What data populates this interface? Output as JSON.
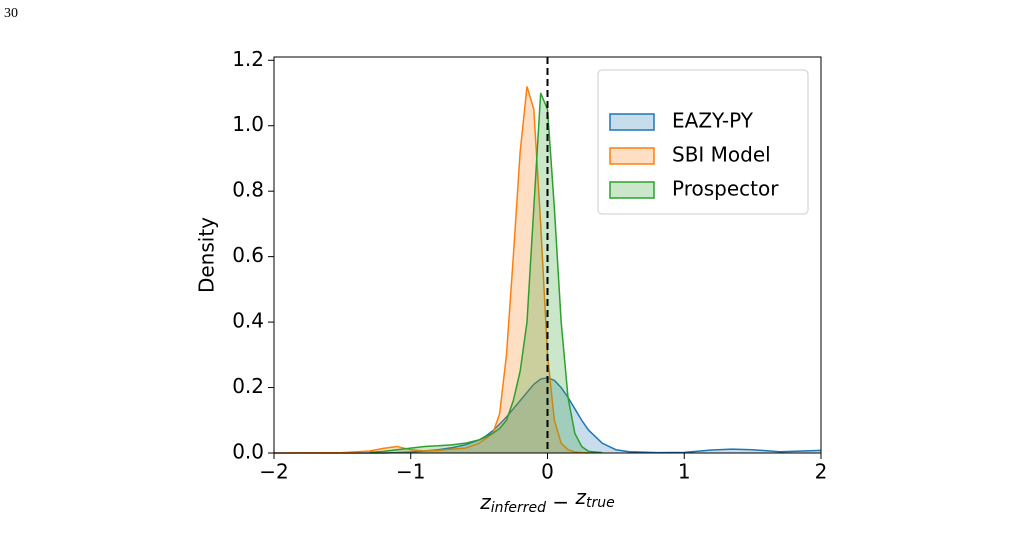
{
  "page_number": "30",
  "chart_data": {
    "type": "kde",
    "y_label": "Density",
    "x_label": [
      "z",
      "inferred",
      " − ",
      "z",
      "true"
    ],
    "x": [
      -2,
      -1.5,
      -1.3,
      -1.2,
      -1.1,
      -1.0,
      -0.9,
      -0.8,
      -0.7,
      -0.6,
      -0.5,
      -0.45,
      -0.4,
      -0.35,
      -0.3,
      -0.25,
      -0.2,
      -0.15,
      -0.1,
      -0.05,
      0,
      0.05,
      0.1,
      0.15,
      0.2,
      0.25,
      0.3,
      0.4,
      0.5,
      0.6,
      0.8,
      1.0,
      1.2,
      1.35,
      1.5,
      1.7,
      2.0
    ],
    "series": [
      {
        "name": "EAZY-PY",
        "color": "#1f77b4",
        "values": [
          0,
          0,
          0,
          0,
          0.001,
          0.003,
          0.006,
          0.01,
          0.016,
          0.025,
          0.04,
          0.052,
          0.068,
          0.088,
          0.11,
          0.135,
          0.16,
          0.185,
          0.21,
          0.226,
          0.23,
          0.222,
          0.2,
          0.17,
          0.135,
          0.1,
          0.07,
          0.03,
          0.01,
          0.004,
          0.001,
          0.002,
          0.009,
          0.012,
          0.01,
          0.004,
          0.008
        ]
      },
      {
        "name": "SBI Model",
        "color": "#ff7f0e",
        "values": [
          0,
          0.001,
          0.006,
          0.014,
          0.02,
          0.01,
          0.006,
          0.008,
          0.012,
          0.015,
          0.03,
          0.045,
          0.06,
          0.12,
          0.3,
          0.6,
          0.92,
          1.12,
          1.05,
          0.7,
          0.3,
          0.1,
          0.03,
          0.01,
          0.003,
          0.001,
          0,
          null,
          null,
          null,
          null,
          null,
          null,
          null,
          null,
          null,
          null
        ]
      },
      {
        "name": "Prospector",
        "color": "#2ca02c",
        "values": [
          null,
          null,
          0.002,
          0.005,
          0.01,
          0.015,
          0.02,
          0.022,
          0.025,
          0.03,
          0.04,
          0.05,
          0.06,
          0.075,
          0.1,
          0.16,
          0.25,
          0.4,
          0.75,
          1.1,
          1.05,
          0.75,
          0.4,
          0.17,
          0.06,
          0.02,
          0.005,
          0.001,
          null,
          null,
          null,
          null,
          null,
          null,
          null,
          null,
          null
        ]
      }
    ],
    "xlim": [
      -2,
      2
    ],
    "ylim": [
      0,
      1.21
    ],
    "xticks": [
      {
        "value": -2,
        "label": "−2"
      },
      {
        "value": -1,
        "label": "−1"
      },
      0,
      1,
      2
    ],
    "yticks": [
      {
        "value": 0,
        "label": "0.0"
      },
      0.2,
      0.4,
      0.6,
      0.8,
      {
        "value": 1,
        "label": "1.0"
      },
      1.2
    ],
    "vline": 0,
    "legend": "upper right",
    "fill_opacity": 0.25
  }
}
